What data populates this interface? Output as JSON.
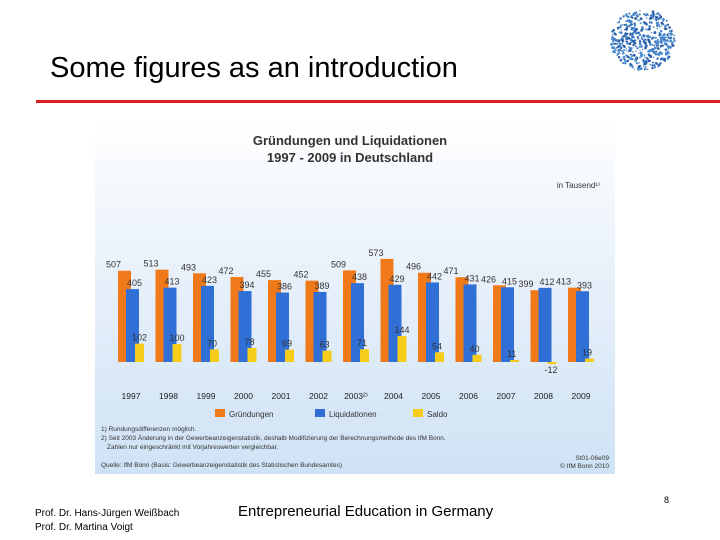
{
  "slide": {
    "title": "Some figures as an introduction",
    "footer_author_1": "Prof. Dr. Hans-Jürgen Weißbach",
    "footer_author_2": "Prof. Dr. Martina Voigt",
    "footer_center": "Entrepreneurial Education in Germany",
    "page_number": "8"
  },
  "chart_data": {
    "type": "bar",
    "title": "Gründungen und Liquidationen",
    "subtitle": "1997 - 2009 in Deutschland",
    "unit_label": "in Tausend¹⁾",
    "categories": [
      "1997",
      "1998",
      "1999",
      "2000",
      "2001",
      "2002",
      "2003²⁾",
      "2004",
      "2005",
      "2006",
      "2007",
      "2008",
      "2009"
    ],
    "series": [
      {
        "name": "Gründungen",
        "values": [
          507,
          513,
          493,
          472,
          455,
          452,
          509,
          573,
          496,
          471,
          426,
          399,
          413
        ],
        "color": "#f07a1a"
      },
      {
        "name": "Liquidationen",
        "values": [
          405,
          413,
          423,
          394,
          386,
          389,
          438,
          429,
          442,
          431,
          415,
          412,
          393
        ],
        "color": "#2f6fd6"
      },
      {
        "name": "Saldo",
        "values": [
          102,
          100,
          70,
          78,
          69,
          63,
          71,
          144,
          54,
          40,
          11,
          -12,
          19
        ],
        "color": "#f5cc1a"
      }
    ],
    "ylim": [
      -20,
      600
    ],
    "grid": false,
    "legend_position": "bottom",
    "footnotes": [
      "1) Rundungsdifferenzen möglich.",
      "2) Seit 2003 Änderung in der Gewerbeanzeigenstatistik, deshalb Modifizierung der Berechnungsmethode des IfM Bonn.",
      "Zahlen nur eingeschränkt mit Vorjahreswerten vergleichbar."
    ],
    "source": "Quelle: IfM Bonn (Basis: Gewerbeanzeigenstatistik des Statistischen Bundesamtes)",
    "code": "St01-06e09",
    "copyright": "© IfM Bonn 2010"
  }
}
